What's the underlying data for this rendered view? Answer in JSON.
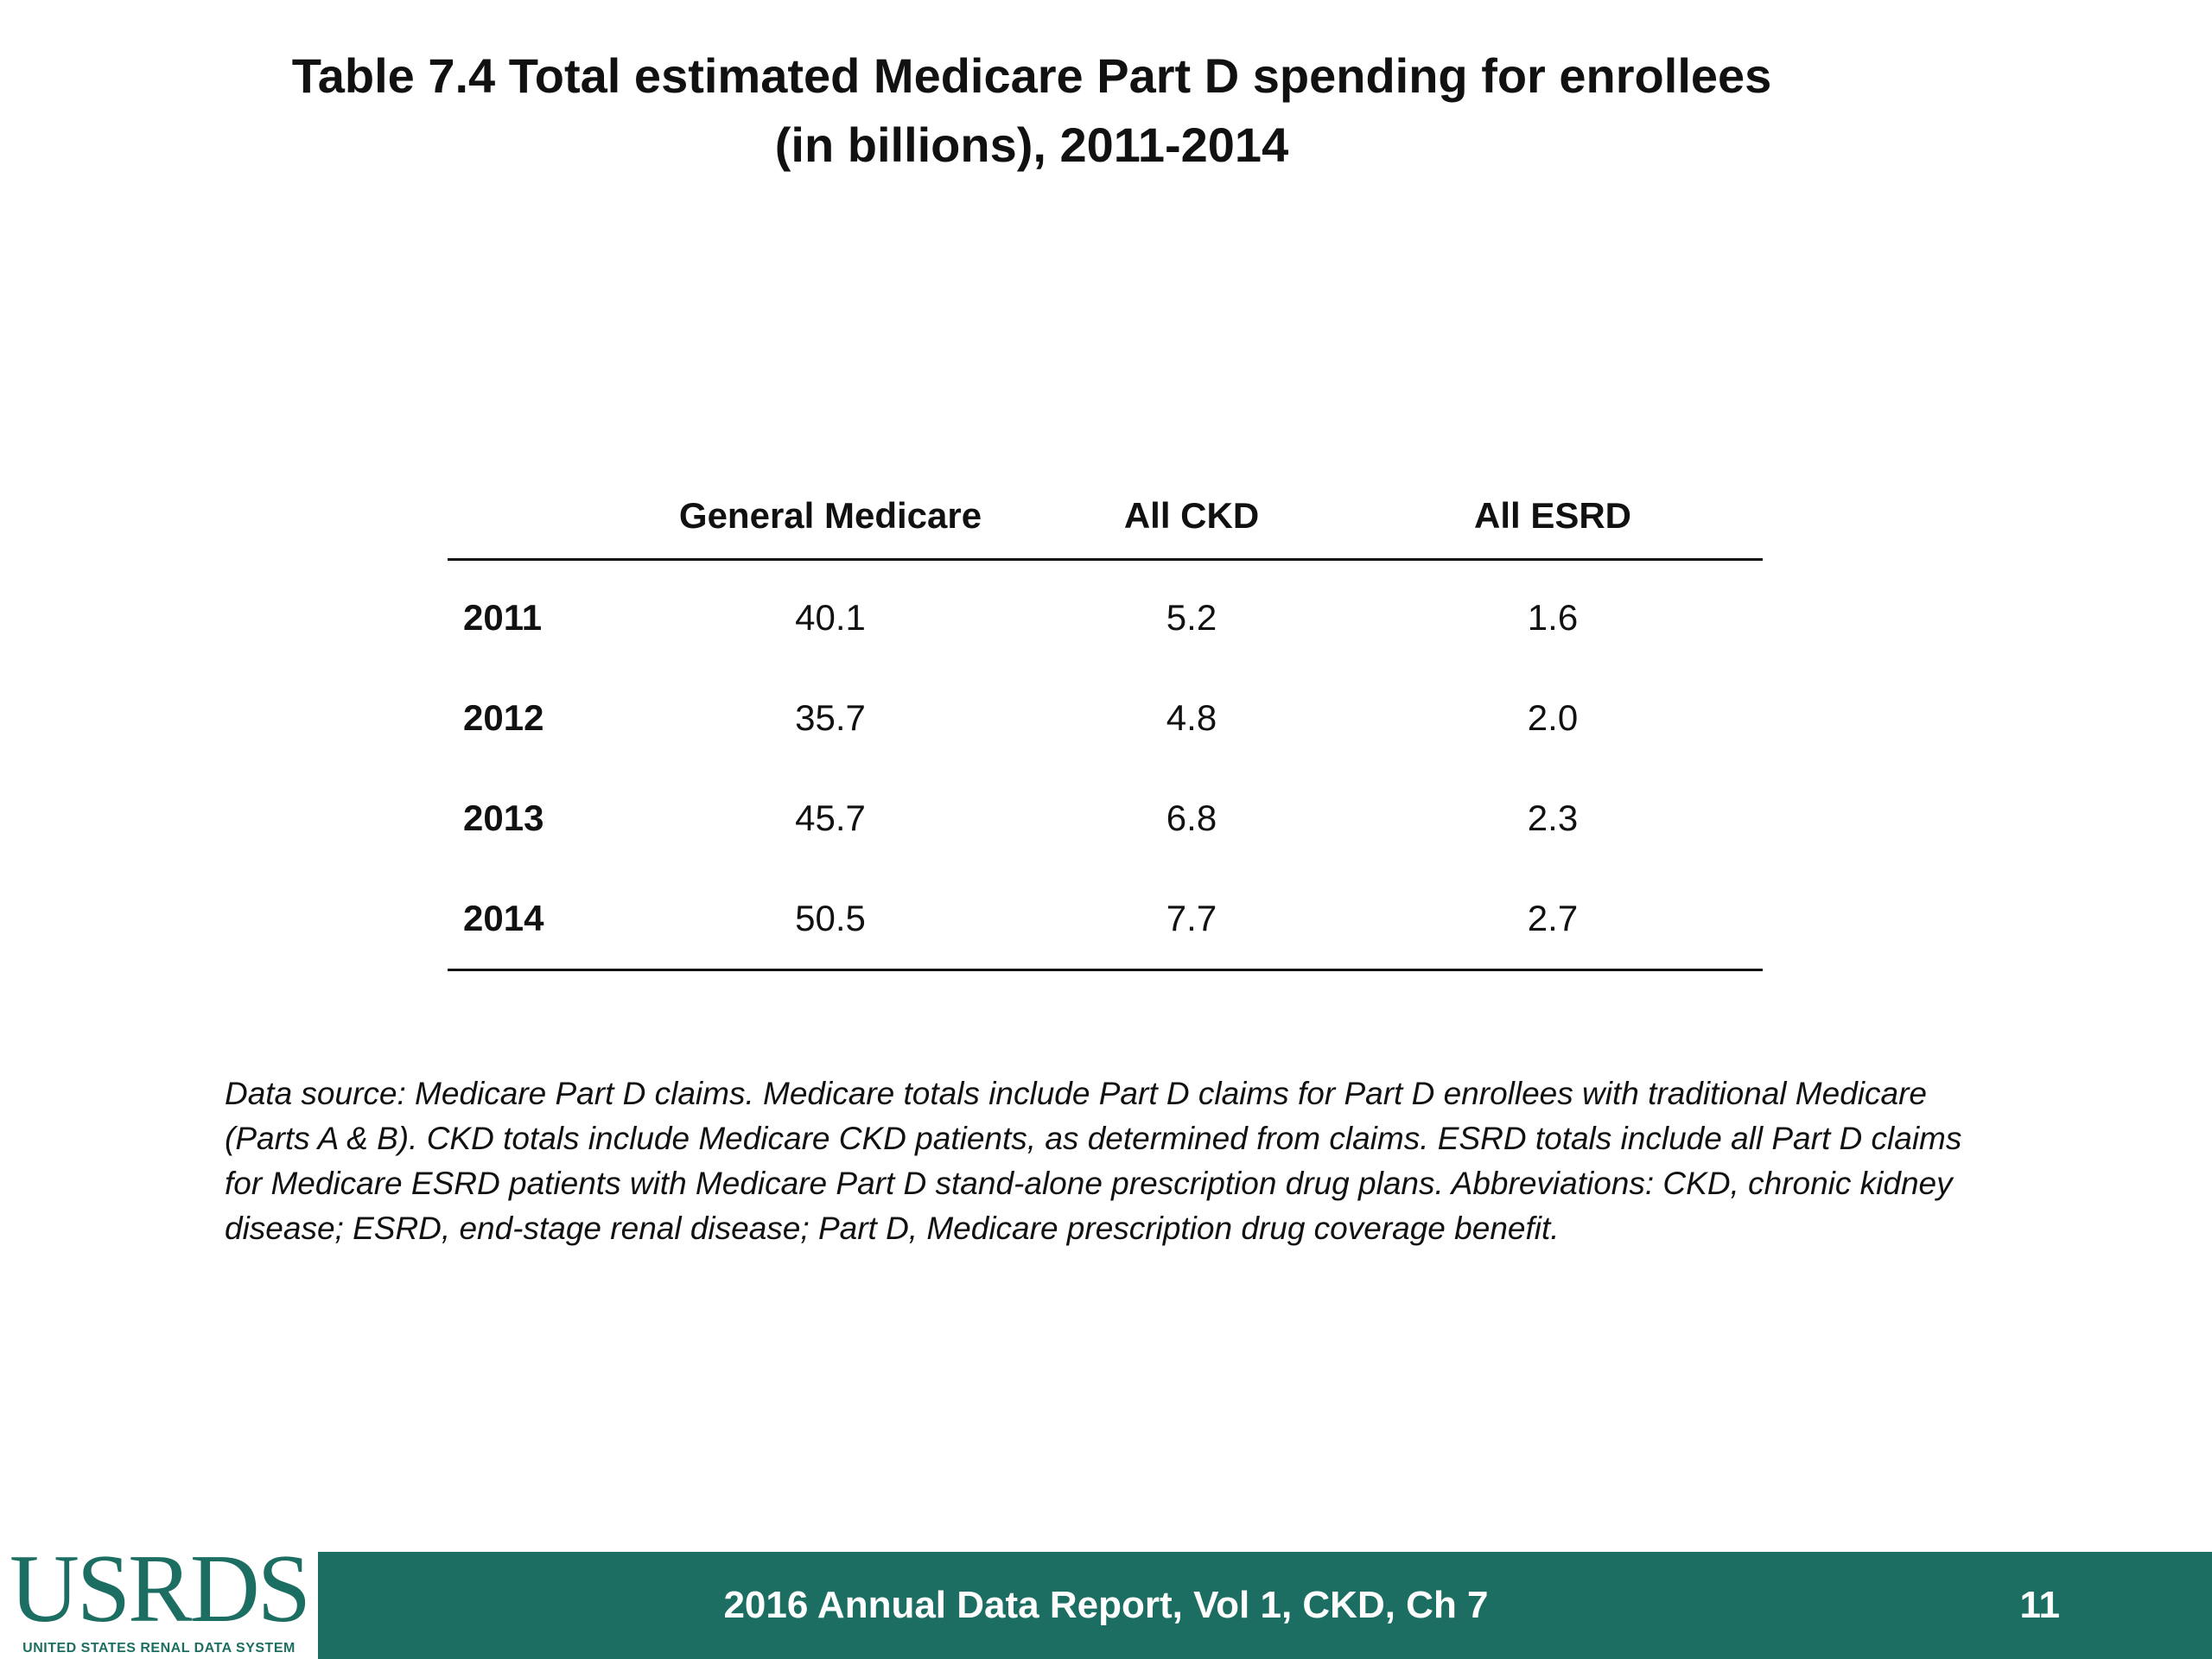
{
  "title": {
    "line1": "Table 7.4 Total estimated Medicare Part D spending for enrollees",
    "line2": "(in billions), 2011-2014"
  },
  "table": {
    "columns": [
      "",
      "General Medicare",
      "All CKD",
      "All ESRD"
    ],
    "rows": [
      {
        "year": "2011",
        "general_medicare": "40.1",
        "all_ckd": "5.2",
        "all_esrd": "1.6"
      },
      {
        "year": "2012",
        "general_medicare": "35.7",
        "all_ckd": "4.8",
        "all_esrd": "2.0"
      },
      {
        "year": "2013",
        "general_medicare": "45.7",
        "all_ckd": "6.8",
        "all_esrd": "2.3"
      },
      {
        "year": "2014",
        "general_medicare": "50.5",
        "all_ckd": "7.7",
        "all_esrd": "2.7"
      }
    ]
  },
  "footnote": "Data source: Medicare Part D claims. Medicare totals include Part D claims for Part D enrollees with traditional Medicare (Parts A & B). CKD totals include Medicare CKD patients, as determined from claims. ESRD totals include all Part D claims for Medicare ESRD patients with Medicare Part D stand-alone prescription drug plans. Abbreviations: CKD, chronic kidney disease; ESRD, end-stage renal disease; Part D, Medicare prescription drug coverage benefit.",
  "footer": {
    "logo_text": "USRDS",
    "logo_subtext": "UNITED STATES RENAL DATA SYSTEM",
    "report_label": "2016 Annual Data Report, Vol 1, CKD, Ch 7",
    "page_number": "11"
  },
  "colors": {
    "footer_bar": "#1d6e62",
    "logo": "#1d6e62"
  }
}
